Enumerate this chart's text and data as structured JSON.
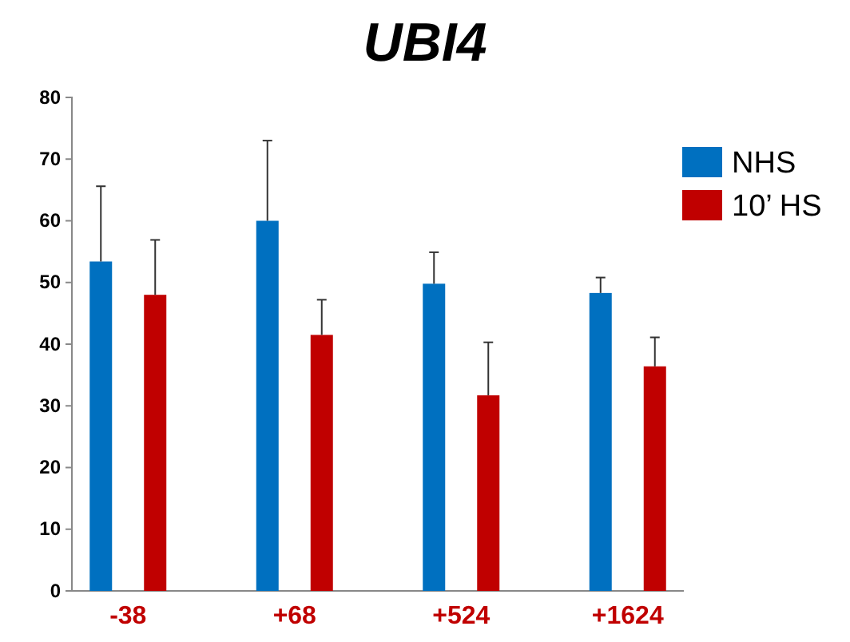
{
  "chart_data": {
    "type": "bar",
    "title": "UBI4",
    "categories": [
      "-38",
      "+68",
      "+524",
      "+1624"
    ],
    "series": [
      {
        "name": "NHS",
        "color": "#0070c0",
        "values": [
          53.4,
          60.0,
          49.8,
          48.3
        ],
        "errors": [
          [
            53.4,
            65.6
          ],
          [
            60.0,
            73.0
          ],
          [
            49.8,
            54.9
          ],
          [
            48.3,
            50.8
          ]
        ]
      },
      {
        "name": "10’ HS",
        "color": "#c00000",
        "values": [
          48.0,
          41.5,
          31.7,
          36.4
        ],
        "errors": [
          [
            48.0,
            56.9
          ],
          [
            41.5,
            47.2
          ],
          [
            31.7,
            40.3
          ],
          [
            36.4,
            41.1
          ]
        ]
      }
    ],
    "ylim": [
      0,
      80
    ],
    "yticks": [
      0,
      10,
      20,
      30,
      40,
      50,
      60,
      70,
      80
    ],
    "legend": "right",
    "grid": false
  }
}
